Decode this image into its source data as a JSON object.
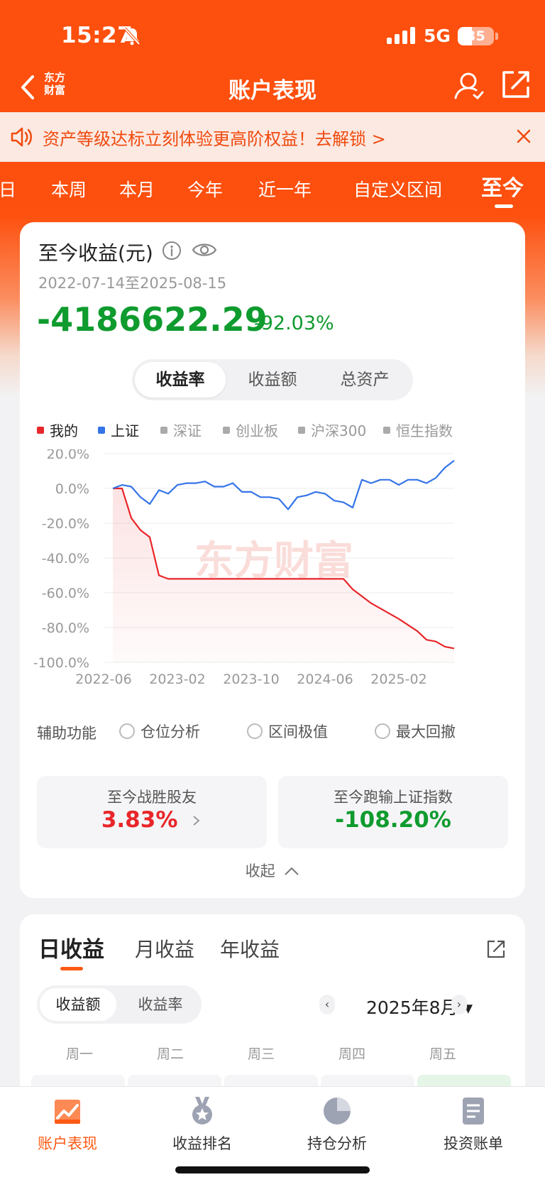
{
  "status": {
    "time": "15:27",
    "network": "5G",
    "battery": "35"
  },
  "nav": {
    "title": "账户表现",
    "brand": "东方\n财富"
  },
  "banner": {
    "text": "资产等级达标立刻体验更高阶权益！去解锁 >"
  },
  "period_tabs": [
    "日",
    "本周",
    "本月",
    "今年",
    "近一年",
    "自定义区间",
    "至今"
  ],
  "active_period": "至今",
  "profit": {
    "title": "至今收益(元)",
    "date_range": "2022-07-14至2025-08-15",
    "amount": "-4186622.29",
    "percent": "-92.03%"
  },
  "metric_tabs": [
    "收益率",
    "收益额",
    "总资产"
  ],
  "legend": [
    {
      "label": "我的",
      "color": "#e8262a",
      "active": true
    },
    {
      "label": "上证",
      "color": "#3574e8",
      "active": true
    },
    {
      "label": "深证",
      "color": "#aaaaaa",
      "active": false
    },
    {
      "label": "创业板",
      "color": "#aaaaaa",
      "active": false
    },
    {
      "label": "沪深300",
      "color": "#aaaaaa",
      "active": false
    },
    {
      "label": "恒生指数",
      "color": "#aaaaaa",
      "active": false
    }
  ],
  "chart_data": {
    "type": "line",
    "x_ticks": [
      "2022-06",
      "2023-02",
      "2023-10",
      "2024-06",
      "2025-02"
    ],
    "y_ticks": [
      "20.0%",
      "0.0%",
      "-20.0%",
      "-40.0%",
      "-60.0%",
      "-80.0%",
      "-100.0%"
    ],
    "ylim": [
      -100,
      20
    ],
    "watermark": "东方财富",
    "series": [
      {
        "name": "我的",
        "color": "#e8262a",
        "x": [
          "2022-07",
          "2022-08",
          "2022-09",
          "2022-10",
          "2022-11",
          "2022-12",
          "2023-01",
          "2023-03",
          "2023-06",
          "2023-09",
          "2023-12",
          "2024-03",
          "2024-06",
          "2024-08",
          "2024-09",
          "2024-11",
          "2025-01",
          "2025-02",
          "2025-04",
          "2025-05",
          "2025-06",
          "2025-07",
          "2025-08"
        ],
        "values": [
          0,
          0,
          -17,
          -24,
          -28,
          -50,
          -52,
          -52,
          -52,
          -52,
          -52,
          -52,
          -52,
          -52,
          -58,
          -66,
          -72,
          -75,
          -82,
          -87,
          -88,
          -91,
          -92
        ]
      },
      {
        "name": "上证",
        "color": "#3574e8",
        "x": [
          "2022-07",
          "2022-08",
          "2022-09",
          "2022-10",
          "2022-11",
          "2022-12",
          "2023-01",
          "2023-02",
          "2023-03",
          "2023-04",
          "2023-05",
          "2023-06",
          "2023-07",
          "2023-08",
          "2023-09",
          "2023-10",
          "2023-11",
          "2023-12",
          "2024-01",
          "2024-02",
          "2024-03",
          "2024-04",
          "2024-05",
          "2024-06",
          "2024-07",
          "2024-08",
          "2024-09",
          "2024-10",
          "2024-11",
          "2024-12",
          "2025-01",
          "2025-02",
          "2025-03",
          "2025-04",
          "2025-05",
          "2025-06",
          "2025-07",
          "2025-08"
        ],
        "values": [
          0,
          2,
          1,
          -5,
          -9,
          -1,
          -3,
          2,
          3,
          3,
          4,
          1,
          1,
          3,
          -2,
          -2,
          -5,
          -5,
          -6,
          -12,
          -5,
          -4,
          -2,
          -3,
          -7,
          -8,
          -11,
          5,
          3,
          5,
          5,
          2,
          5,
          5,
          3,
          6,
          12,
          16
        ]
      }
    ]
  },
  "aux": {
    "label": "辅助功能",
    "options": [
      "仓位分析",
      "区间极值",
      "最大回撤"
    ]
  },
  "stats": {
    "beat_label": "至今战胜股友",
    "beat_value": "3.83%",
    "vs_label": "至今跑输上证指数",
    "vs_value": "-108.20%"
  },
  "collapse_label": "收起",
  "daily": {
    "tabs": [
      "日收益",
      "月收益",
      "年收益"
    ],
    "seg": [
      "收益额",
      "收益率"
    ],
    "month": "2025年8月",
    "weekdays": [
      "周一",
      "周二",
      "周三",
      "周四",
      "周五"
    ]
  },
  "bottom_nav": [
    "账户表现",
    "收益排名",
    "持仓分析",
    "投资账单"
  ]
}
